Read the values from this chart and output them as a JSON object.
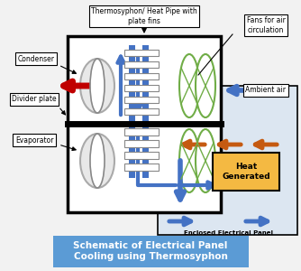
{
  "title": "Schematic of Electrical Panel\nCooling using Thermosyphon",
  "title_bg": "#5b9bd5",
  "title_color": "white",
  "bg_color": "#f2f2f2",
  "labels": {
    "thermosyphon": "Thermosyphon/ Heat Pipe with\nplate fins",
    "condenser": "Condenser",
    "divider": "Divider plate",
    "evaporator": "Evaporator",
    "fans": "Fans for air\ncirculation",
    "ambient": "Ambient air",
    "enclosed": "Enclosed Electrical Panel",
    "heat": "Heat\nGenerated"
  },
  "colors": {
    "blue_arrow": "#4472c4",
    "orange_arrow": "#c55a11",
    "red_arrow": "#c00000",
    "heat_box": "#f4b942",
    "green_coil": "#70ad47",
    "panel_bg": "#dce6f1",
    "box_border": "black"
  }
}
